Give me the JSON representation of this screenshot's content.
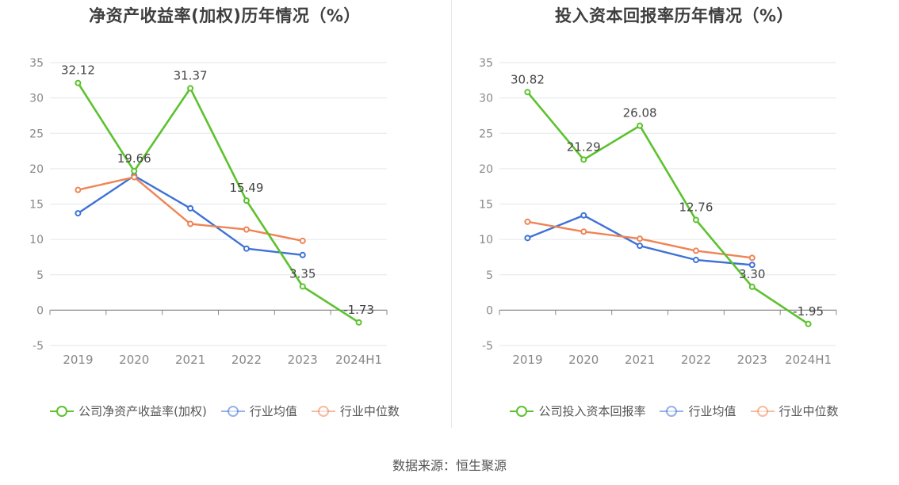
{
  "source": "数据来源：恒生聚源",
  "chart_data": [
    {
      "type": "line",
      "title": "净资产收益率(加权)历年情况（%）",
      "categories": [
        "2019",
        "2020",
        "2021",
        "2022",
        "2023",
        "2024H1"
      ],
      "ylim": [
        -5,
        35
      ],
      "yticks": [
        -5,
        0,
        5,
        10,
        15,
        20,
        25,
        30,
        35
      ],
      "grid": true,
      "legend_position": "bottom",
      "series": [
        {
          "name": "公司净资产收益率(加权)",
          "color": "#5cc22e",
          "values": [
            32.12,
            19.66,
            31.37,
            15.49,
            3.35,
            -1.73
          ],
          "labels": [
            "32.12",
            "19.66",
            "31.37",
            "15.49",
            "3.35",
            "-1.73"
          ]
        },
        {
          "name": "行业均值",
          "color": "#3f72d6",
          "values": [
            13.7,
            19.0,
            14.4,
            8.7,
            7.8,
            null
          ]
        },
        {
          "name": "行业中位数",
          "color": "#ee8455",
          "values": [
            17.0,
            18.8,
            12.2,
            11.4,
            9.8,
            null
          ]
        }
      ]
    },
    {
      "type": "line",
      "title": "投入资本回报率历年情况（%）",
      "categories": [
        "2019",
        "2020",
        "2021",
        "2022",
        "2023",
        "2024H1"
      ],
      "ylim": [
        -5,
        35
      ],
      "yticks": [
        -5,
        0,
        5,
        10,
        15,
        20,
        25,
        30,
        35
      ],
      "grid": true,
      "legend_position": "bottom",
      "series": [
        {
          "name": "公司投入资本回报率",
          "color": "#5cc22e",
          "values": [
            30.82,
            21.29,
            26.08,
            12.76,
            3.3,
            -1.95
          ],
          "labels": [
            "30.82",
            "21.29",
            "26.08",
            "12.76",
            "3.30",
            "-1.95"
          ]
        },
        {
          "name": "行业均值",
          "color": "#3f72d6",
          "values": [
            10.2,
            13.4,
            9.1,
            7.1,
            6.4,
            null
          ]
        },
        {
          "name": "行业中位数",
          "color": "#ee8455",
          "values": [
            12.5,
            11.1,
            10.1,
            8.4,
            7.4,
            null
          ]
        }
      ]
    }
  ]
}
